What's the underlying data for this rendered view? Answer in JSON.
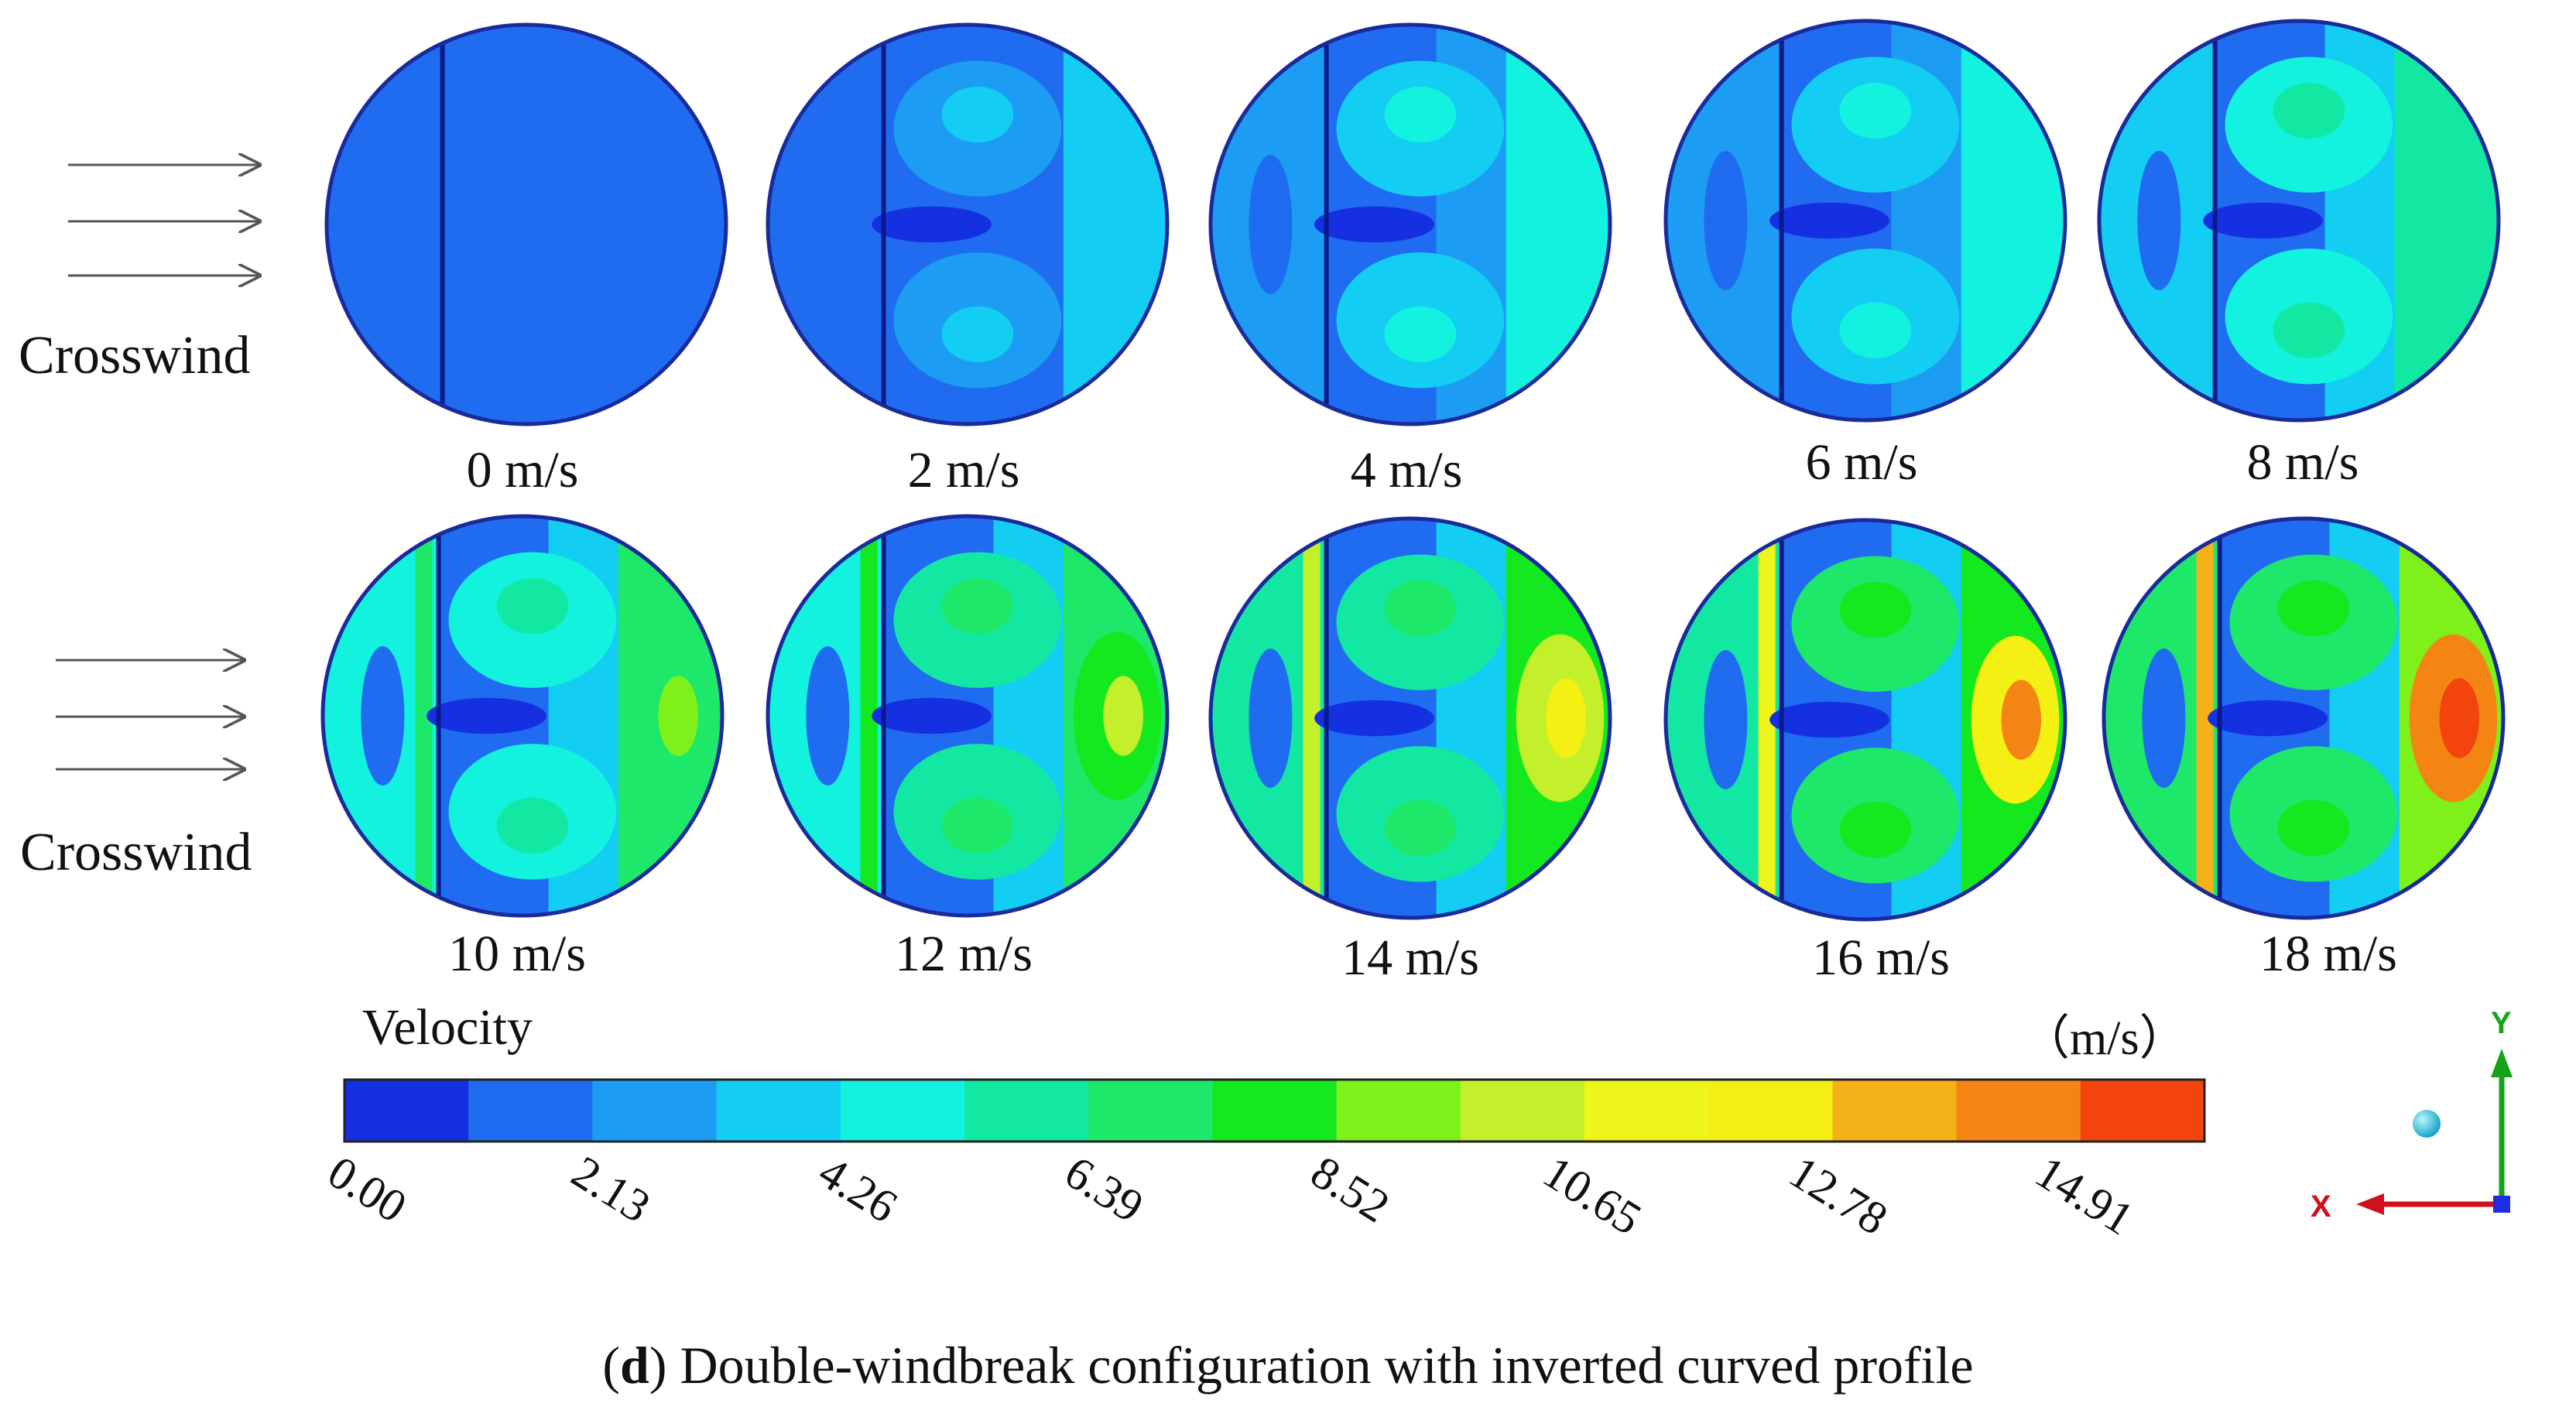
{
  "crosswind_label": "Crosswind",
  "speeds_row1": [
    "0 m/s",
    "2 m/s",
    "4 m/s",
    "6 m/s",
    "8 m/s"
  ],
  "speeds_row2": [
    "10 m/s",
    "12 m/s",
    "14 m/s",
    "16 m/s",
    "18 m/s"
  ],
  "colorbar": {
    "title": "Velocity",
    "unit": "（m/s）",
    "ticks": [
      "0.00",
      "2.13",
      "4.26",
      "6.39",
      "8.52",
      "10.65",
      "12.78",
      "14.91"
    ],
    "colors": [
      "#1530e0",
      "#1f6cf0",
      "#1c9cf2",
      "#13cdf2",
      "#12f2df",
      "#13e8a3",
      "#1de86a",
      "#14e81e",
      "#7ef01a",
      "#c3f02a",
      "#eef51a",
      "#f5f014",
      "#f5b118",
      "#f58512",
      "#f4440e"
    ]
  },
  "axes": {
    "x": "X",
    "y": "Y"
  },
  "caption": {
    "letter": "d",
    "text": " Double-windbreak configuration with inverted curved profile"
  }
}
